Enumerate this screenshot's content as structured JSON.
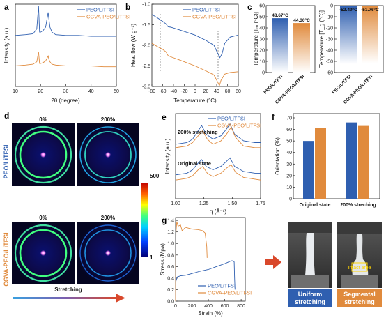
{
  "colors": {
    "peo": "#2f5fb0",
    "cgva": "#e08a3c",
    "arrow": "#d9482b"
  },
  "panels": {
    "a": {
      "letter": "a",
      "xlabel": "2θ (degree)",
      "ylabel": "Intensity (a.u.)",
      "xticks": [
        "10",
        "20",
        "30",
        "40",
        "50"
      ]
    },
    "b": {
      "letter": "b",
      "xlabel": "Temperature (°C)",
      "ylabel": "Heat flow (W g⁻¹)",
      "xticks": [
        "-80",
        "-60",
        "-40",
        "-20",
        "0",
        "20",
        "40",
        "60",
        "80"
      ],
      "yticks": [
        "-1.0",
        "-1.5",
        "-2.0",
        "-2.5",
        "-3.0"
      ]
    },
    "c": {
      "letter": "c",
      "left_ylabel": "Temperature [Tₘ (°C)]",
      "left_yticks": [
        "0",
        "10",
        "20",
        "30",
        "40",
        "50",
        "60"
      ],
      "right_ylabel": "Temperature [T_g (°C)]",
      "right_yticks": [
        "-60",
        "-50",
        "-40",
        "-30",
        "-20",
        "-10",
        "0"
      ],
      "categories": [
        "PEO/LiTFSI",
        "CGVA-PEO/LiTFSI"
      ],
      "tm_labels": [
        "48.67°C",
        "44.30°C"
      ],
      "tg_labels": [
        "-52.49°C",
        "-51.76°C"
      ]
    },
    "d": {
      "letter": "d",
      "col_labels": [
        "0%",
        "200%",
        "0%",
        "200%"
      ],
      "row_labels": [
        "PEO/LiTFSI",
        "CGVA-PEO/LiTFSI"
      ],
      "colorbar_max": "500",
      "colorbar_min": "1",
      "stretch_label": "Stretching"
    },
    "e": {
      "letter": "e",
      "xlabel": "q (Å⁻¹)",
      "ylabel": "Intensity (a.u.)",
      "xticks": [
        "1.00",
        "1.25",
        "1.50",
        "1.75"
      ],
      "ann_top": "200% stretching",
      "ann_bottom": "Original state"
    },
    "f": {
      "letter": "f",
      "ylabel": "Orientation (%)",
      "yticks": [
        "0",
        "10",
        "20",
        "30",
        "40",
        "50",
        "60",
        "70"
      ],
      "groups": [
        "Original state",
        "200% streching"
      ]
    },
    "g": {
      "letter": "g",
      "xlabel": "Strain (%)",
      "ylabel": "Stress (Mpa)",
      "xticks": [
        "0",
        "200",
        "400",
        "600",
        "800"
      ],
      "yticks": [
        "0.0",
        "0.2",
        "0.4",
        "0.6",
        "0.8",
        "1.0",
        "1.2",
        "1.4"
      ]
    },
    "photos": {
      "left_label": "Uniform stretching",
      "right_label": "Segmental stretching",
      "intact": "Intact area"
    }
  },
  "legend": {
    "peo": "PEO/LiTFSI",
    "cgva": "CGVA-PEO/LiTFSI"
  },
  "chart_data": [
    {
      "panel": "a",
      "type": "line",
      "xlabel": "2θ (degree)",
      "ylabel": "Intensity (a.u.)",
      "xlim": [
        10,
        50
      ],
      "series": [
        {
          "name": "PEO/LiTFSI",
          "x": [
            10,
            14,
            17,
            18.5,
            19.2,
            19.6,
            20,
            21,
            22,
            23,
            23.3,
            23.7,
            24.5,
            26,
            30,
            35,
            40,
            45,
            50
          ],
          "y": [
            0.62,
            0.63,
            0.64,
            0.7,
            0.98,
            0.66,
            0.66,
            0.68,
            0.72,
            0.9,
            0.82,
            0.72,
            0.66,
            0.63,
            0.62,
            0.62,
            0.61,
            0.61,
            0.61
          ]
        },
        {
          "name": "CGVA-PEO/LiTFSI",
          "x": [
            10,
            14,
            17,
            18.5,
            19.2,
            19.6,
            20,
            21,
            22,
            23,
            23.3,
            23.7,
            24.5,
            26,
            30,
            35,
            40,
            45,
            50
          ],
          "y": [
            0.25,
            0.26,
            0.27,
            0.3,
            0.42,
            0.28,
            0.28,
            0.29,
            0.31,
            0.37,
            0.33,
            0.3,
            0.27,
            0.26,
            0.25,
            0.25,
            0.25,
            0.24,
            0.24
          ]
        }
      ]
    },
    {
      "panel": "b",
      "type": "line",
      "xlabel": "Temperature (°C)",
      "ylabel": "Heat flow (W g⁻¹)",
      "xlim": [
        -80,
        80
      ],
      "ylim": [
        -3.0,
        -1.0
      ],
      "series": [
        {
          "name": "PEO/LiTFSI",
          "x": [
            -80,
            -70,
            -60,
            -54,
            -50,
            -45,
            -30,
            0,
            20,
            35,
            42,
            46,
            50,
            55,
            65,
            80
          ],
          "y": [
            -1.25,
            -1.33,
            -1.42,
            -1.48,
            -1.55,
            -1.56,
            -1.62,
            -1.75,
            -1.88,
            -2.0,
            -2.2,
            -2.3,
            -2.2,
            -1.95,
            -1.8,
            -1.75
          ]
        },
        {
          "name": "CGVA-PEO/LiTFSI",
          "x": [
            -80,
            -70,
            -60,
            -54,
            -50,
            -45,
            -30,
            0,
            20,
            35,
            42,
            45,
            48,
            55,
            65,
            80
          ],
          "y": [
            -1.95,
            -2.03,
            -2.1,
            -2.16,
            -2.25,
            -2.28,
            -2.35,
            -2.5,
            -2.62,
            -2.72,
            -2.9,
            -2.98,
            -2.85,
            -2.7,
            -2.66,
            -2.64
          ]
        }
      ]
    },
    {
      "panel": "c-Tm",
      "type": "bar",
      "ylabel": "Temperature [Tₘ (°C)]",
      "ylim": [
        0,
        60
      ],
      "categories": [
        "PEO/LiTFSI",
        "CGVA-PEO/LiTFSI"
      ],
      "values": [
        48.67,
        44.3
      ]
    },
    {
      "panel": "c-Tg",
      "type": "bar",
      "ylabel": "Temperature [T_g (°C)]",
      "ylim": [
        -60,
        0
      ],
      "categories": [
        "PEO/LiTFSI",
        "CGVA-PEO/LiTFSI"
      ],
      "values": [
        -52.49,
        -51.76
      ]
    },
    {
      "panel": "e",
      "type": "line",
      "xlabel": "q (Å⁻¹)",
      "ylabel": "Intensity (a.u.)",
      "xlim": [
        1.0,
        1.75
      ],
      "series": [
        {
          "name": "PEO/LiTFSI (200% stretching)",
          "x": [
            1.0,
            1.1,
            1.15,
            1.2,
            1.23,
            1.27,
            1.33,
            1.4,
            1.45,
            1.48,
            1.52,
            1.6,
            1.7,
            1.75
          ],
          "y": [
            0.64,
            0.66,
            0.7,
            0.8,
            0.86,
            0.76,
            0.7,
            0.74,
            0.82,
            0.88,
            0.76,
            0.68,
            0.66,
            0.66
          ]
        },
        {
          "name": "CGVA-PEO/LiTFSI (200% stretching)",
          "x": [
            1.0,
            1.1,
            1.15,
            1.2,
            1.24,
            1.28,
            1.33,
            1.4,
            1.45,
            1.49,
            1.53,
            1.6,
            1.7,
            1.75
          ],
          "y": [
            0.6,
            0.62,
            0.66,
            0.74,
            0.8,
            0.7,
            0.64,
            0.68,
            0.76,
            0.84,
            0.72,
            0.62,
            0.6,
            0.6
          ]
        },
        {
          "name": "PEO/LiTFSI (Original state)",
          "x": [
            1.0,
            1.1,
            1.15,
            1.2,
            1.23,
            1.27,
            1.33,
            1.4,
            1.45,
            1.48,
            1.52,
            1.6,
            1.7,
            1.75
          ],
          "y": [
            0.28,
            0.3,
            0.34,
            0.42,
            0.46,
            0.38,
            0.34,
            0.38,
            0.44,
            0.48,
            0.38,
            0.32,
            0.3,
            0.3
          ]
        },
        {
          "name": "CGVA-PEO/LiTFSI (Original state)",
          "x": [
            1.0,
            1.1,
            1.15,
            1.2,
            1.24,
            1.28,
            1.33,
            1.4,
            1.45,
            1.49,
            1.53,
            1.6,
            1.7,
            1.75
          ],
          "y": [
            0.22,
            0.24,
            0.27,
            0.34,
            0.38,
            0.3,
            0.26,
            0.3,
            0.36,
            0.4,
            0.31,
            0.25,
            0.23,
            0.22
          ]
        }
      ]
    },
    {
      "panel": "f",
      "type": "bar",
      "ylabel": "Orientation (%)",
      "ylim": [
        0,
        70
      ],
      "categories": [
        "Original state",
        "200% streching"
      ],
      "series": [
        {
          "name": "PEO/LiTFSI",
          "values": [
            50,
            66
          ]
        },
        {
          "name": "CGVA-PEO/LiTFSI",
          "values": [
            61,
            63
          ]
        }
      ]
    },
    {
      "panel": "g",
      "type": "line",
      "xlabel": "Strain (%)",
      "ylabel": "Stress (Mpa)",
      "xlim": [
        0,
        850
      ],
      "ylim": [
        0,
        1.45
      ],
      "series": [
        {
          "name": "PEO/LiTFSI",
          "x": [
            0,
            5,
            20,
            60,
            120,
            200,
            300,
            400,
            500,
            600,
            680,
            700,
            715,
            720,
            725
          ],
          "y": [
            0,
            0.35,
            0.42,
            0.44,
            0.45,
            0.48,
            0.52,
            0.55,
            0.6,
            0.65,
            0.7,
            0.7,
            0.68,
            0.4,
            0.2
          ]
        },
        {
          "name": "CGVA-PEO/LiTFSI",
          "x": [
            0,
            5,
            15,
            30,
            60,
            80,
            120,
            200,
            280,
            330,
            360,
            380,
            385
          ],
          "y": [
            0,
            1.2,
            1.38,
            1.3,
            1.32,
            1.22,
            1.28,
            1.25,
            1.24,
            1.22,
            1.18,
            0.95,
            0.75
          ]
        }
      ]
    }
  ]
}
